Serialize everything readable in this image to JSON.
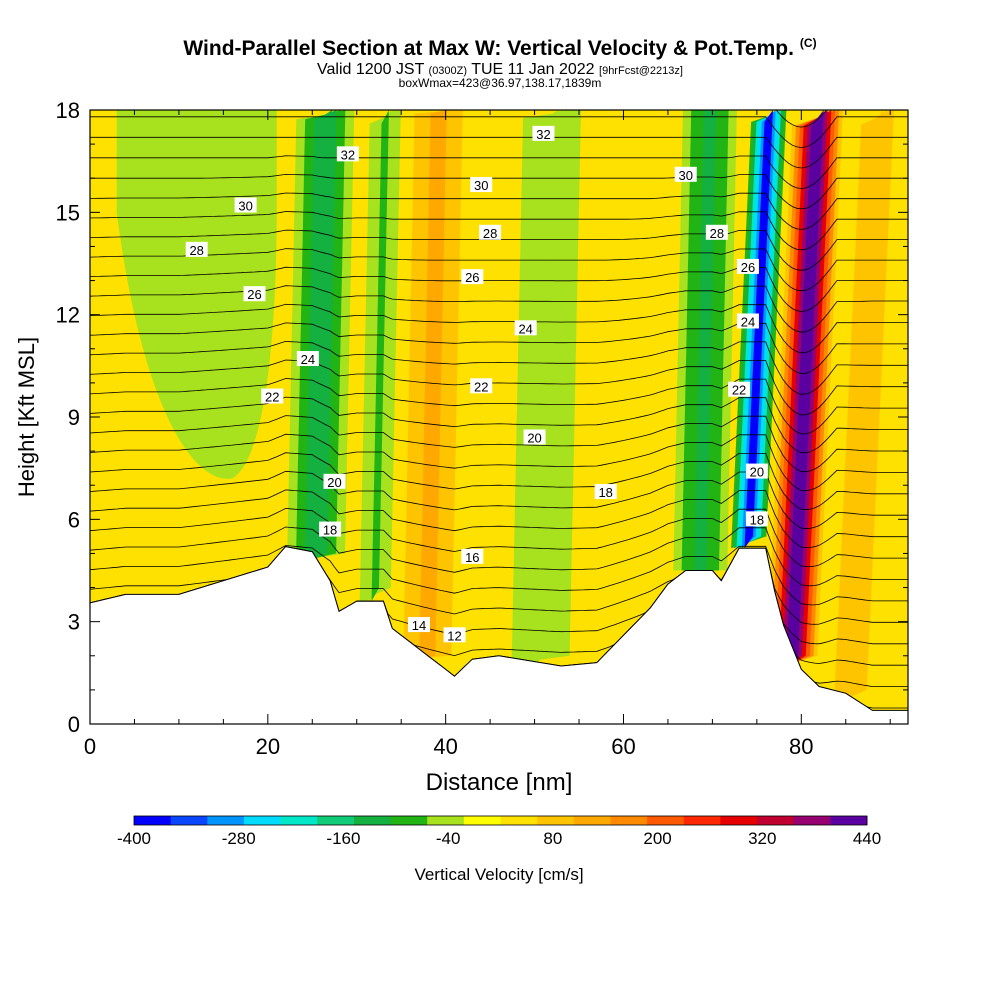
{
  "header": {
    "title": "Wind-Parallel Section at Max W: Vertical Velocity & Pot.Temp.",
    "copyright": "(C)",
    "valid_prefix": "Valid 1200 JST",
    "valid_utc": "(0300Z)",
    "valid_date": "TUE 11 Jan 2022",
    "forecast": "[9hrFcst@2213z]",
    "box_info": "boxWmax=423@36.97,138.17,1839m"
  },
  "chart_data": {
    "type": "heatmap",
    "xlabel": "Distance [nm]",
    "ylabel": "Height [Kft MSL]",
    "xlim": [
      0,
      92
    ],
    "ylim": [
      0,
      18
    ],
    "x_ticks": [
      "0",
      "20",
      "40",
      "60",
      "80"
    ],
    "y_ticks": [
      "0",
      "3",
      "6",
      "9",
      "12",
      "15",
      "18"
    ],
    "x_tick_values": [
      0,
      20,
      40,
      60,
      80
    ],
    "y_tick_values": [
      0,
      3,
      6,
      9,
      12,
      15,
      18
    ],
    "colorbar": {
      "label": "Vertical Velocity [cm/s]",
      "tick_labels": [
        "-400",
        "-280",
        "-160",
        "-40",
        "80",
        "200",
        "320",
        "440"
      ],
      "tick_values": [
        -400,
        -280,
        -160,
        -40,
        80,
        200,
        320,
        440
      ],
      "colors": [
        "#0000ff",
        "#0a46ff",
        "#0094ff",
        "#00dcff",
        "#00e8c8",
        "#10cc78",
        "#14b040",
        "#22b414",
        "#a8e21e",
        "#ffff00",
        "#ffe100",
        "#ffc400",
        "#ffa800",
        "#ff8a00",
        "#ff5a00",
        "#ff2800",
        "#e60000",
        "#c00030",
        "#960070",
        "#5a00a0"
      ]
    },
    "terrain_kft": [
      [
        0,
        3.55
      ],
      [
        4,
        3.8
      ],
      [
        10,
        3.8
      ],
      [
        20,
        4.6
      ],
      [
        22,
        5.2
      ],
      [
        25,
        5.05
      ],
      [
        27,
        4.2
      ],
      [
        28,
        3.3
      ],
      [
        30,
        3.6
      ],
      [
        33,
        3.6
      ],
      [
        34,
        2.8
      ],
      [
        36,
        2.4
      ],
      [
        38,
        2.0
      ],
      [
        40,
        1.6
      ],
      [
        41,
        1.4
      ],
      [
        43,
        1.9
      ],
      [
        46,
        2.0
      ],
      [
        53,
        1.7
      ],
      [
        57,
        1.8
      ],
      [
        60,
        2.6
      ],
      [
        63,
        3.4
      ],
      [
        65,
        4.1
      ],
      [
        67,
        4.5
      ],
      [
        70,
        4.5
      ],
      [
        71,
        4.2
      ],
      [
        73,
        5.15
      ],
      [
        76,
        5.15
      ],
      [
        77,
        3.9
      ],
      [
        78,
        2.9
      ],
      [
        80,
        1.6
      ],
      [
        82,
        1.1
      ],
      [
        85,
        0.9
      ],
      [
        88,
        0.4
      ],
      [
        92,
        0.4
      ]
    ],
    "velocity_bands": [
      {
        "x": [
          22,
          29.5
        ],
        "peak_cm_s": -130
      },
      {
        "x": [
          30.5,
          34.5
        ],
        "peak_cm_s": -70
      },
      {
        "x": [
          34,
          43
        ],
        "peak_cm_s": 110
      },
      {
        "x": [
          47.5,
          55
        ],
        "peak_cm_s": -40
      },
      {
        "x": [
          65.5,
          72.5
        ],
        "peak_cm_s": -120
      },
      {
        "x": [
          72.5,
          77
        ],
        "peak_cm_s": -370
      },
      {
        "x": [
          77,
          83.5
        ],
        "peak_cm_s": 423
      },
      {
        "x": [
          84,
          90
        ],
        "peak_cm_s": 95
      }
    ],
    "theta_contours": {
      "levels_c": [
        12,
        14,
        16,
        18,
        20,
        22,
        24,
        26,
        28,
        30,
        32
      ],
      "labels": [
        {
          "text": "12",
          "x": 41,
          "y": 2.6
        },
        {
          "text": "14",
          "x": 37,
          "y": 2.9
        },
        {
          "text": "16",
          "x": 43,
          "y": 4.9
        },
        {
          "text": "18",
          "x": 27,
          "y": 5.7
        },
        {
          "text": "18",
          "x": 58,
          "y": 6.8
        },
        {
          "text": "18",
          "x": 75,
          "y": 6.0
        },
        {
          "text": "20",
          "x": 27.5,
          "y": 7.1
        },
        {
          "text": "20",
          "x": 50,
          "y": 8.4
        },
        {
          "text": "20",
          "x": 75,
          "y": 7.4
        },
        {
          "text": "22",
          "x": 20.5,
          "y": 9.6
        },
        {
          "text": "22",
          "x": 44,
          "y": 9.9
        },
        {
          "text": "22",
          "x": 73,
          "y": 9.8
        },
        {
          "text": "24",
          "x": 24.5,
          "y": 10.7
        },
        {
          "text": "24",
          "x": 49,
          "y": 11.6
        },
        {
          "text": "24",
          "x": 74,
          "y": 11.8
        },
        {
          "text": "26",
          "x": 18.5,
          "y": 12.6
        },
        {
          "text": "26",
          "x": 43,
          "y": 13.1
        },
        {
          "text": "26",
          "x": 74,
          "y": 13.4
        },
        {
          "text": "28",
          "x": 12,
          "y": 13.9
        },
        {
          "text": "28",
          "x": 45,
          "y": 14.4
        },
        {
          "text": "28",
          "x": 70.5,
          "y": 14.4
        },
        {
          "text": "30",
          "x": 17.5,
          "y": 15.2
        },
        {
          "text": "30",
          "x": 44,
          "y": 15.8
        },
        {
          "text": "30",
          "x": 67,
          "y": 16.1
        },
        {
          "text": "32",
          "x": 29,
          "y": 16.7
        },
        {
          "text": "32",
          "x": 51,
          "y": 17.3
        }
      ]
    }
  }
}
